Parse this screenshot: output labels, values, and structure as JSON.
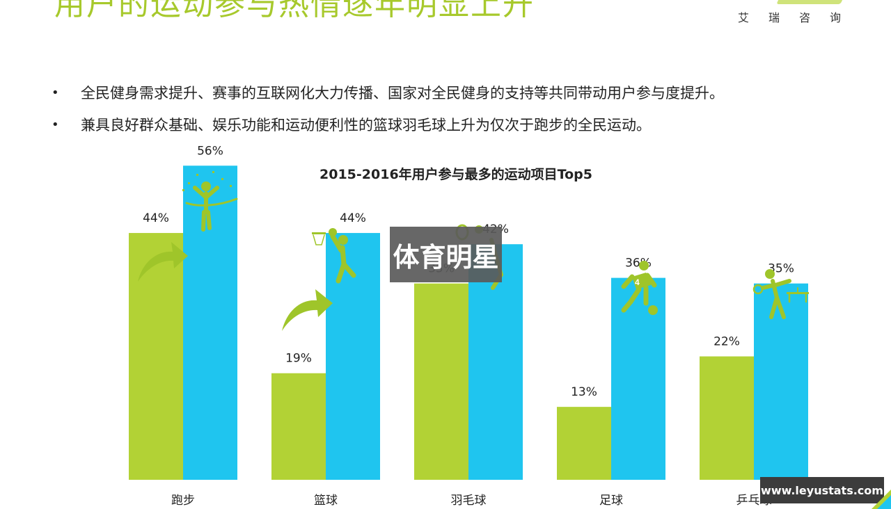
{
  "header": {
    "title": "用户的运动参与热情逐年明显上升",
    "logo_text": "艾瑞咨询"
  },
  "bullets": [
    "全民健身需求提升、赛事的互联网化大力传播、国家对全民健身的支持等共同带动用户参与度提升。",
    "兼具良好群众基础、娱乐功能和运动便利性的篮球羽毛球上升为仅次于跑步的全民运动。"
  ],
  "bullet_marker": "•",
  "overlay_text": "体育明星",
  "watermark_text": "www.leyustats.com",
  "colors": {
    "series_2015": "#b2d235",
    "series_2016": "#1fc5ef",
    "accent": "#9fc52a"
  },
  "chart_data": {
    "type": "bar",
    "title": "2015-2016年用户参与最多的运动项目Top5",
    "categories": [
      "跑步",
      "篮球",
      "羽毛球",
      "足球",
      "乒乓球"
    ],
    "series": [
      {
        "values": [
          44,
          19,
          35,
          13,
          22
        ]
      },
      {
        "values": [
          56,
          44,
          42,
          36,
          35
        ]
      }
    ],
    "value_suffix": "%",
    "ylim": [
      0,
      60
    ],
    "grid": false,
    "legend": "none",
    "icons": [
      "runner-icon",
      "basketball-player-icon",
      "badminton-player-icon",
      "soccer-player-icon",
      "table-tennis-player-icon"
    ]
  }
}
